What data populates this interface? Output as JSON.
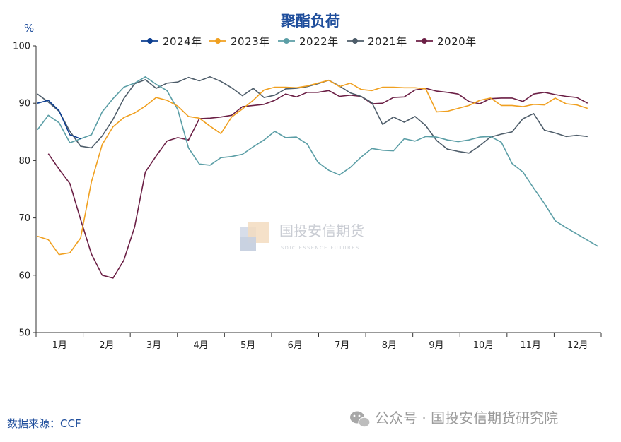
{
  "chart_data": {
    "type": "line",
    "title": "聚酯负荷",
    "ylabel": "%",
    "xlabel": "",
    "ylim": [
      50,
      100
    ],
    "yticks": [
      50,
      60,
      70,
      80,
      90,
      100
    ],
    "categories": [
      "1月",
      "2月",
      "3月",
      "4月",
      "5月",
      "6月",
      "7月",
      "8月",
      "9月",
      "10月",
      "11月",
      "12月"
    ],
    "x_unit": "week",
    "x_range": [
      1,
      53
    ],
    "grid": false,
    "legend_position": "top-center",
    "series": [
      {
        "name": "2024年",
        "color": "#0d3f91",
        "x": [
          1,
          2,
          3,
          4,
          5
        ],
        "y": [
          90.0,
          90.5,
          88.7,
          84.5,
          83.8
        ]
      },
      {
        "name": "2023年",
        "color": "#f0a020",
        "x": [
          1,
          2,
          3,
          4,
          5,
          6,
          7,
          8,
          9,
          10,
          11,
          12,
          13,
          14,
          15,
          16,
          17,
          18,
          19,
          20,
          21,
          22,
          23,
          24,
          25,
          26,
          27,
          28,
          29,
          30,
          31,
          32,
          33,
          34,
          35,
          36,
          37,
          38,
          39,
          40,
          41,
          42,
          43,
          44,
          45,
          46,
          47,
          48,
          49,
          50,
          51,
          52
        ],
        "y": [
          66.8,
          66.2,
          63.6,
          63.9,
          66.5,
          76.3,
          82.8,
          85.9,
          87.5,
          88.3,
          89.5,
          91.0,
          90.5,
          89.5,
          87.7,
          87.4,
          86.0,
          84.7,
          87.6,
          89.0,
          90.5,
          92.3,
          92.8,
          92.8,
          92.7,
          93.0,
          93.5,
          94.0,
          92.9,
          93.5,
          92.4,
          92.2,
          92.8,
          92.8,
          92.7,
          92.7,
          92.5,
          88.5,
          88.6,
          89.1,
          89.6,
          90.5,
          90.9,
          89.6,
          89.6,
          89.4,
          89.8,
          89.7,
          90.9,
          89.9,
          89.7,
          89.1
        ]
      },
      {
        "name": "2022年",
        "color": "#5b9ea6",
        "x": [
          1,
          2,
          3,
          4,
          5,
          6,
          7,
          8,
          9,
          10,
          11,
          12,
          13,
          14,
          15,
          16,
          17,
          18,
          19,
          20,
          21,
          22,
          23,
          24,
          25,
          26,
          27,
          28,
          29,
          30,
          31,
          32,
          33,
          34,
          35,
          36,
          37,
          38,
          39,
          40,
          41,
          42,
          43,
          44,
          45,
          46,
          47,
          48,
          49,
          50,
          51,
          52,
          53
        ],
        "y": [
          85.4,
          87.9,
          86.6,
          83.1,
          83.8,
          84.5,
          88.5,
          90.8,
          92.8,
          93.5,
          94.6,
          93.3,
          92.2,
          88.9,
          82.2,
          79.4,
          79.2,
          80.5,
          80.7,
          81.1,
          82.4,
          83.6,
          85.1,
          84.0,
          84.1,
          82.9,
          79.7,
          78.3,
          77.5,
          78.8,
          80.6,
          82.1,
          81.8,
          81.7,
          83.8,
          83.4,
          84.2,
          84.1,
          83.6,
          83.3,
          83.6,
          84.1,
          84.2,
          83.2,
          79.5,
          78.0,
          75.2,
          72.5,
          69.5,
          68.3,
          67.2,
          66.1,
          65.0
        ]
      },
      {
        "name": "2021年",
        "color": "#4e5d6a",
        "x": [
          1,
          2,
          3,
          4,
          5,
          6,
          7,
          8,
          9,
          10,
          11,
          12,
          13,
          14,
          15,
          16,
          17,
          18,
          19,
          20,
          21,
          22,
          23,
          24,
          25,
          26,
          27,
          28,
          29,
          30,
          31,
          32,
          33,
          34,
          35,
          36,
          37,
          38,
          39,
          40,
          41,
          42,
          43,
          44,
          45,
          46,
          47,
          48,
          49,
          50,
          51,
          52
        ],
        "y": [
          91.6,
          90.2,
          88.6,
          85.1,
          82.5,
          82.2,
          84.3,
          87.2,
          90.8,
          93.4,
          94.1,
          92.6,
          93.5,
          93.7,
          94.5,
          93.9,
          94.6,
          93.8,
          92.7,
          91.3,
          92.6,
          91.0,
          91.4,
          92.5,
          92.6,
          92.9,
          93.4,
          94.0,
          93.0,
          91.8,
          91.2,
          90.1,
          86.3,
          87.6,
          86.7,
          87.7,
          86.1,
          83.5,
          82.0,
          81.6,
          81.3,
          82.6,
          84.1,
          84.6,
          85.0,
          87.3,
          88.2,
          85.3,
          84.8,
          84.2,
          84.4,
          84.2
        ]
      },
      {
        "name": "2020年",
        "color": "#6b1f45",
        "x": [
          2,
          3,
          4,
          5,
          6,
          7,
          8,
          9,
          10,
          11,
          12,
          13,
          14,
          15,
          16,
          17,
          18,
          19,
          20,
          21,
          22,
          23,
          24,
          25,
          26,
          27,
          28,
          29,
          30,
          31,
          32,
          33,
          34,
          35,
          36,
          37,
          38,
          39,
          40,
          41,
          42,
          43,
          44,
          45,
          46,
          47,
          48,
          49,
          50,
          51,
          52
        ],
        "y": [
          81.2,
          78.5,
          76.0,
          69.7,
          63.7,
          60.0,
          59.5,
          62.6,
          68.4,
          78.0,
          80.8,
          83.4,
          84.0,
          83.6,
          87.3,
          87.4,
          87.6,
          87.9,
          89.4,
          89.6,
          89.8,
          90.5,
          91.6,
          91.1,
          91.9,
          91.9,
          92.2,
          91.2,
          91.4,
          91.2,
          89.9,
          90.0,
          91.0,
          91.1,
          92.3,
          92.6,
          92.1,
          91.9,
          91.6,
          90.3,
          89.9,
          90.8,
          90.9,
          90.9,
          90.3,
          91.6,
          91.9,
          91.5,
          91.2,
          91.0,
          90.0
        ]
      }
    ]
  },
  "source": "数据来源：CCF",
  "watermark": {
    "name": "国投安信期货",
    "sub": "SDIC ESSENCE FUTURES"
  },
  "footer": {
    "channel": "公众号 · 国投安信期货研究院",
    "icon": "wechat-icon"
  }
}
